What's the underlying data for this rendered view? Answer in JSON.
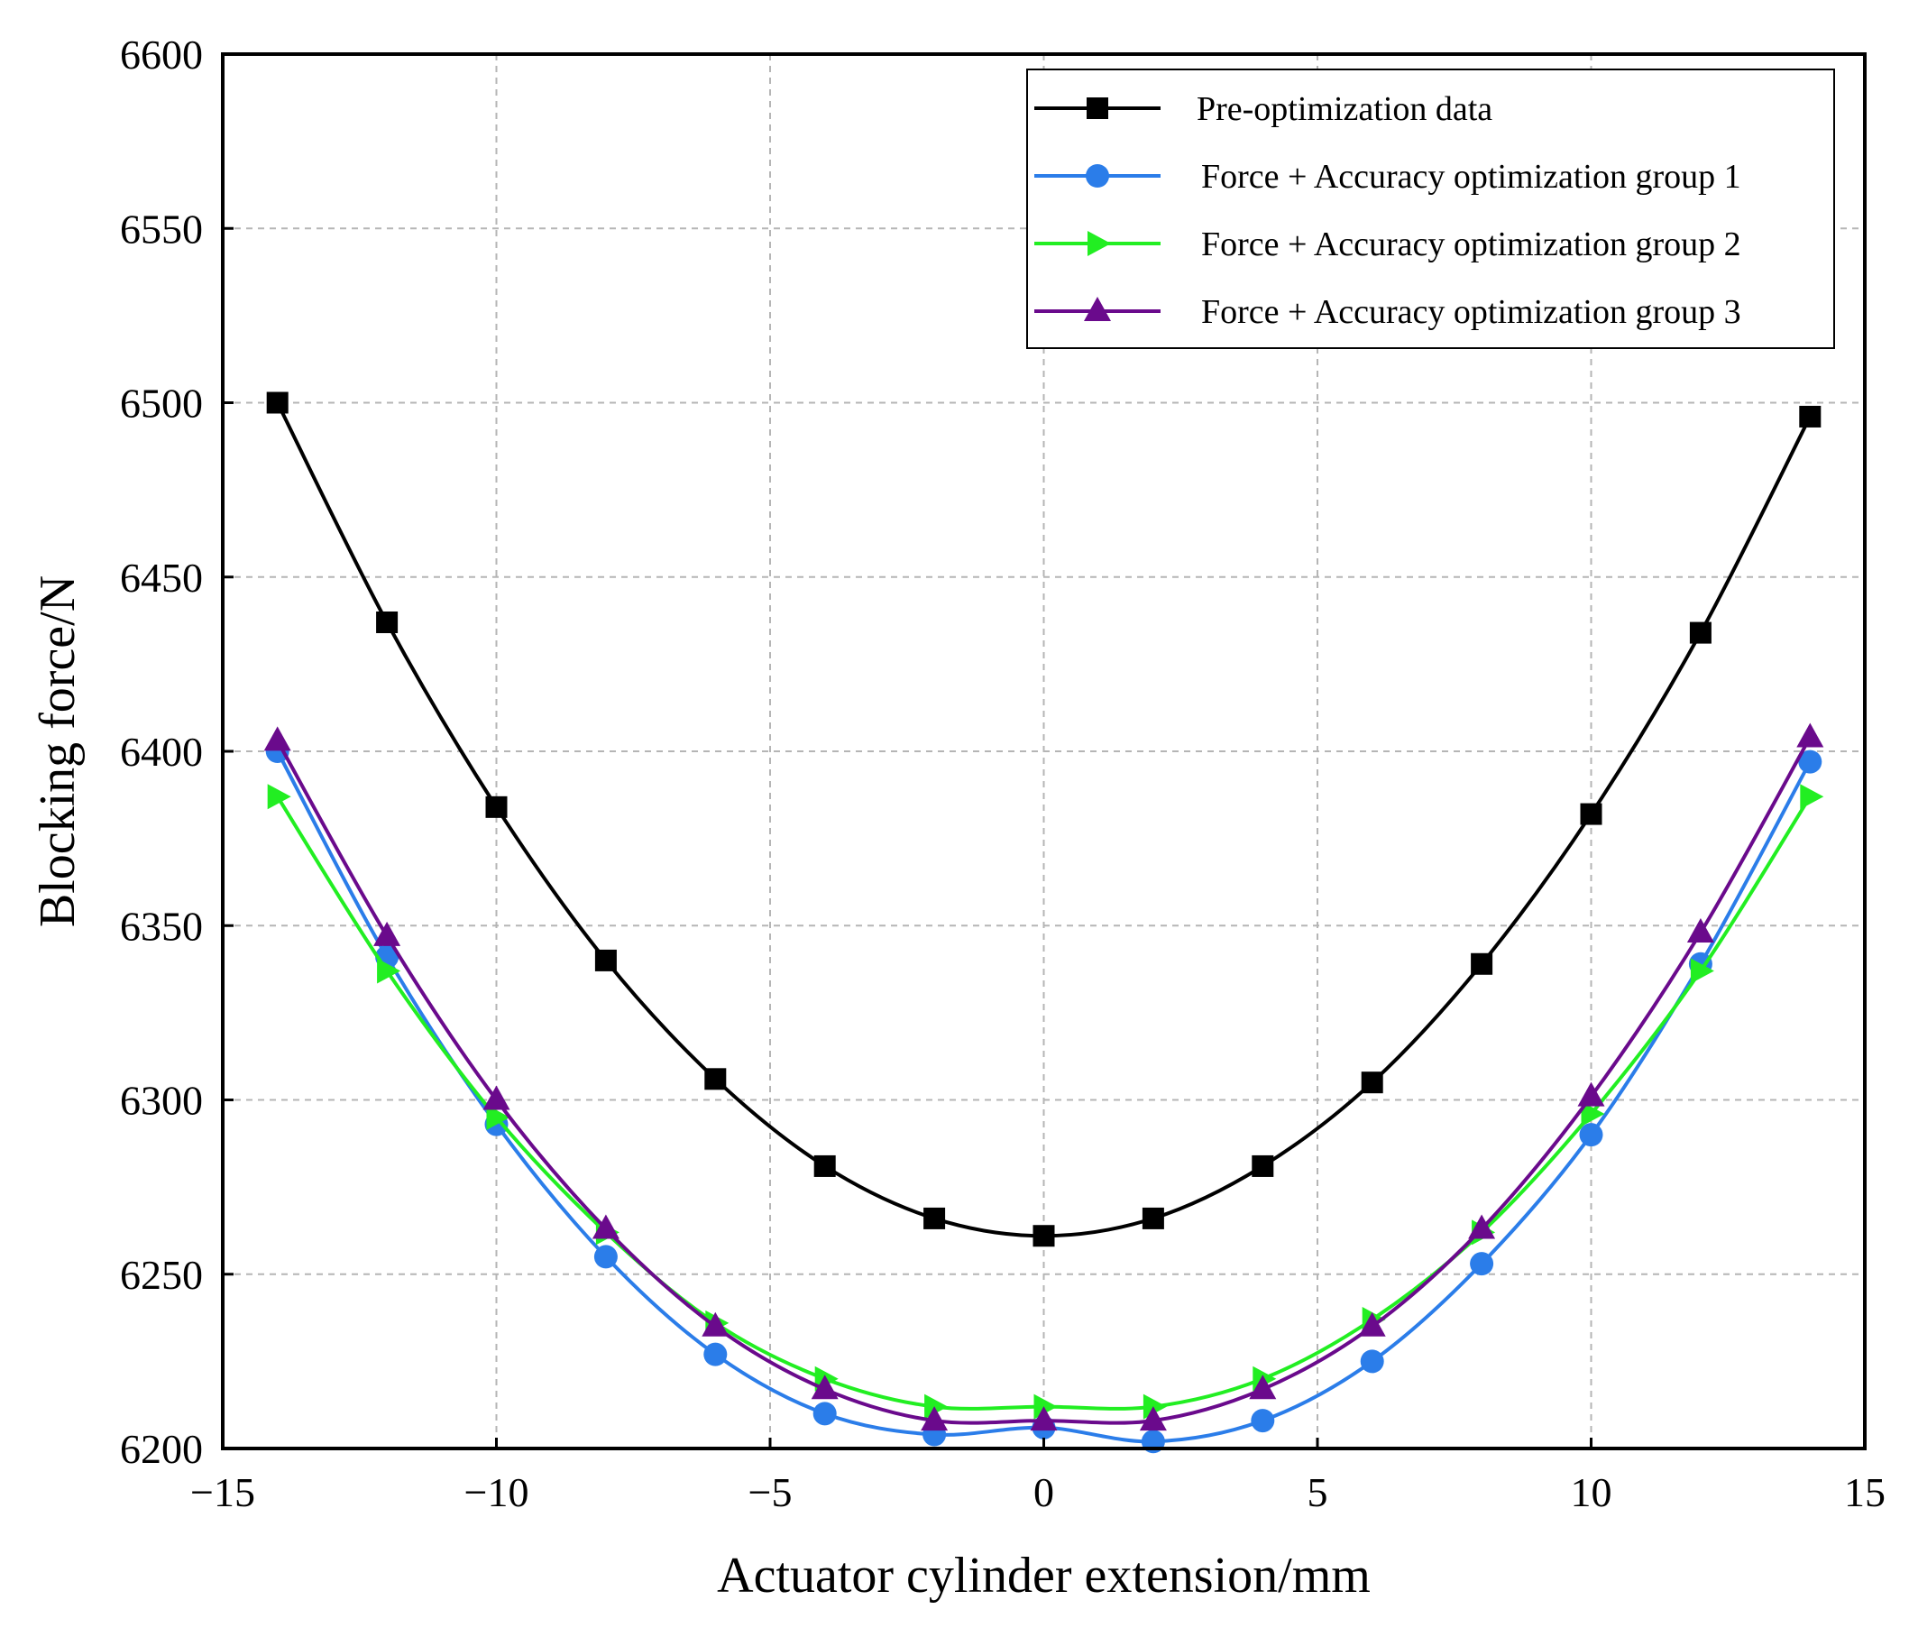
{
  "chart_data": {
    "type": "line",
    "title": "",
    "xlabel": "Actuator cylinder extension/mm",
    "ylabel": "Blocking force/N",
    "xlim": [
      -15,
      15
    ],
    "ylim": [
      6200,
      6600
    ],
    "xticks": [
      -15,
      -10,
      -5,
      0,
      5,
      10,
      15
    ],
    "xtick_labels": [
      "−15",
      "−10",
      "−5",
      "0",
      "5",
      "10",
      "15"
    ],
    "yticks": [
      6200,
      6250,
      6300,
      6350,
      6400,
      6450,
      6500,
      6550,
      6600
    ],
    "ytick_labels": [
      "6200",
      "6250",
      "6300",
      "6350",
      "6400",
      "6450",
      "6500",
      "6550",
      "6600"
    ],
    "grid": true,
    "legend_position": "top-right",
    "x": [
      -14,
      -12,
      -10,
      -8,
      -6,
      -4,
      -2,
      0,
      2,
      4,
      6,
      8,
      10,
      12,
      14
    ],
    "series": [
      {
        "name": "Pre-optimization data",
        "color": "#000000",
        "marker": "square",
        "values": [
          6500,
          6437,
          6384,
          6340,
          6306,
          6281,
          6266,
          6261,
          6266,
          6281,
          6305,
          6339,
          6382,
          6434,
          6496
        ]
      },
      {
        "name": "Force + Accuracy optimization group 1",
        "color": "#2b7de9",
        "marker": "circle",
        "values": [
          6400,
          6341,
          6293,
          6255,
          6227,
          6210,
          6204,
          6206,
          6202,
          6208,
          6225,
          6253,
          6290,
          6339,
          6397
        ]
      },
      {
        "name": "Force + Accuracy optimization group 2",
        "color": "#22ee22",
        "marker": "triangle-right",
        "values": [
          6387,
          6337,
          6295,
          6262,
          6236,
          6220,
          6212,
          6212,
          6212,
          6220,
          6237,
          6262,
          6296,
          6337,
          6387
        ]
      },
      {
        "name": "Force + Accuracy optimization group 3",
        "color": "#6a0a8c",
        "marker": "triangle-up",
        "values": [
          6403,
          6347,
          6300,
          6263,
          6235,
          6217,
          6208,
          6208,
          6208,
          6217,
          6235,
          6263,
          6301,
          6348,
          6404
        ]
      }
    ]
  }
}
